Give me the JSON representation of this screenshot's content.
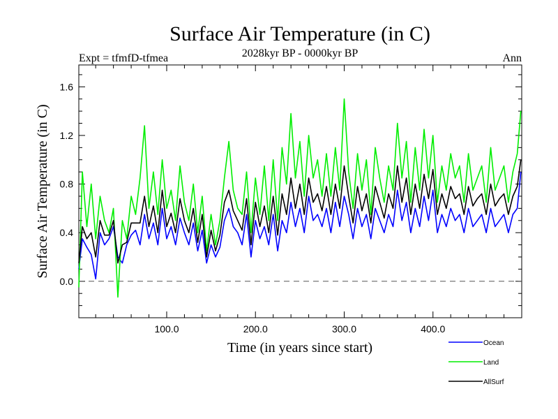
{
  "chart_data": {
    "type": "line",
    "title": "Surface Air Temperature (in C)",
    "subtitle": "2028kyr BP - 0000kyr BP",
    "experiment_label": "Expt = tfmfD-tfmea",
    "period_label": "Ann",
    "xlabel": "Time (in years since start)",
    "ylabel": "Surface Air Temperature (in C)",
    "xlim": [
      1,
      500
    ],
    "ylim": [
      -0.3,
      1.78
    ],
    "x_ticks": [
      100,
      200,
      300,
      400
    ],
    "x_tick_labels": [
      "100.0",
      "200.0",
      "300.0",
      "400.0"
    ],
    "y_ticks": [
      0.0,
      0.4,
      0.8,
      1.2,
      1.6
    ],
    "y_tick_labels": [
      "0.0",
      "0.4",
      "0.8",
      "1.2",
      "1.6"
    ],
    "zero_line": true,
    "legend_position": "bottom-right",
    "series": [
      {
        "name": "Ocean",
        "color": "#0000ff",
        "x": [
          1,
          5,
          10,
          15,
          20,
          25,
          30,
          35,
          40,
          45,
          50,
          55,
          60,
          65,
          70,
          75,
          80,
          85,
          90,
          95,
          100,
          105,
          110,
          115,
          120,
          125,
          130,
          135,
          140,
          145,
          150,
          155,
          160,
          165,
          170,
          175,
          180,
          185,
          190,
          195,
          200,
          205,
          210,
          215,
          220,
          225,
          230,
          235,
          240,
          245,
          250,
          255,
          260,
          265,
          270,
          275,
          280,
          285,
          290,
          295,
          300,
          305,
          310,
          315,
          320,
          325,
          330,
          335,
          340,
          345,
          350,
          355,
          360,
          365,
          370,
          375,
          380,
          385,
          390,
          395,
          400,
          405,
          410,
          415,
          420,
          425,
          430,
          435,
          440,
          445,
          450,
          455,
          460,
          465,
          470,
          475,
          480,
          485,
          490,
          495,
          499
        ],
        "values": [
          0.1,
          0.35,
          0.28,
          0.22,
          0.02,
          0.4,
          0.3,
          0.35,
          0.45,
          0.2,
          0.15,
          0.3,
          0.38,
          0.42,
          0.3,
          0.55,
          0.35,
          0.48,
          0.3,
          0.6,
          0.35,
          0.45,
          0.3,
          0.52,
          0.4,
          0.3,
          0.48,
          0.25,
          0.42,
          0.15,
          0.3,
          0.2,
          0.28,
          0.5,
          0.6,
          0.45,
          0.4,
          0.3,
          0.55,
          0.2,
          0.5,
          0.35,
          0.45,
          0.3,
          0.55,
          0.25,
          0.5,
          0.4,
          0.65,
          0.45,
          0.6,
          0.4,
          0.7,
          0.5,
          0.55,
          0.45,
          0.6,
          0.4,
          0.65,
          0.45,
          0.7,
          0.55,
          0.35,
          0.6,
          0.45,
          0.55,
          0.35,
          0.6,
          0.5,
          0.4,
          0.55,
          0.45,
          0.75,
          0.5,
          0.65,
          0.4,
          0.6,
          0.45,
          0.7,
          0.5,
          0.75,
          0.4,
          0.55,
          0.45,
          0.6,
          0.5,
          0.55,
          0.4,
          0.6,
          0.45,
          0.5,
          0.55,
          0.4,
          0.6,
          0.45,
          0.5,
          0.55,
          0.4,
          0.55,
          0.6,
          0.9
        ]
      },
      {
        "name": "Land",
        "color": "#00ee00",
        "x": [
          1,
          5,
          10,
          15,
          20,
          25,
          30,
          35,
          40,
          45,
          50,
          55,
          60,
          65,
          70,
          75,
          80,
          85,
          90,
          95,
          100,
          105,
          110,
          115,
          120,
          125,
          130,
          135,
          140,
          145,
          150,
          155,
          160,
          165,
          170,
          175,
          180,
          185,
          190,
          195,
          200,
          205,
          210,
          215,
          220,
          225,
          230,
          235,
          240,
          245,
          250,
          255,
          260,
          265,
          270,
          275,
          280,
          285,
          290,
          295,
          300,
          305,
          310,
          315,
          320,
          325,
          330,
          335,
          340,
          345,
          350,
          355,
          360,
          365,
          370,
          375,
          380,
          385,
          390,
          395,
          400,
          405,
          410,
          415,
          420,
          425,
          430,
          435,
          440,
          445,
          450,
          455,
          460,
          465,
          470,
          475,
          480,
          485,
          490,
          495,
          499
        ],
        "values": [
          -0.05,
          0.9,
          0.45,
          0.8,
          0.35,
          0.7,
          0.5,
          0.4,
          0.6,
          -0.13,
          0.5,
          0.35,
          0.7,
          0.55,
          0.85,
          1.28,
          0.6,
          0.9,
          0.55,
          1.0,
          0.6,
          0.75,
          0.5,
          0.95,
          0.65,
          0.5,
          0.8,
          0.4,
          0.7,
          0.25,
          0.55,
          0.3,
          0.5,
          0.85,
          1.15,
          0.75,
          0.6,
          0.55,
          0.9,
          0.4,
          0.85,
          0.55,
          0.95,
          0.5,
          1.0,
          0.5,
          1.1,
          0.8,
          1.38,
          0.85,
          1.15,
          0.7,
          1.2,
          0.85,
          1.0,
          0.7,
          1.05,
          0.7,
          1.1,
          0.75,
          1.5,
          0.9,
          0.6,
          1.05,
          0.75,
          1.0,
          0.55,
          1.1,
          0.85,
          0.65,
          0.95,
          0.75,
          1.3,
          0.85,
          1.15,
          0.65,
          1.1,
          0.75,
          1.25,
          0.85,
          1.2,
          0.65,
          0.95,
          0.75,
          1.05,
          0.85,
          0.95,
          0.65,
          1.05,
          0.75,
          0.85,
          0.95,
          0.65,
          1.1,
          0.75,
          0.85,
          0.95,
          0.65,
          0.9,
          1.05,
          1.4
        ]
      },
      {
        "name": "AllSurf",
        "color": "#000000",
        "x": [
          1,
          5,
          10,
          15,
          20,
          25,
          30,
          35,
          40,
          45,
          50,
          55,
          60,
          65,
          70,
          75,
          80,
          85,
          90,
          95,
          100,
          105,
          110,
          115,
          120,
          125,
          130,
          135,
          140,
          145,
          150,
          155,
          160,
          165,
          170,
          175,
          180,
          185,
          190,
          195,
          200,
          205,
          210,
          215,
          220,
          225,
          230,
          235,
          240,
          245,
          250,
          255,
          260,
          265,
          270,
          275,
          280,
          285,
          290,
          295,
          300,
          305,
          310,
          315,
          320,
          325,
          330,
          335,
          340,
          345,
          350,
          355,
          360,
          365,
          370,
          375,
          380,
          385,
          390,
          395,
          400,
          405,
          410,
          415,
          420,
          425,
          430,
          435,
          440,
          445,
          450,
          455,
          460,
          465,
          470,
          475,
          480,
          485,
          490,
          495,
          499
        ],
        "values": [
          0.15,
          0.45,
          0.35,
          0.4,
          0.2,
          0.5,
          0.38,
          0.38,
          0.5,
          0.15,
          0.3,
          0.32,
          0.48,
          0.48,
          0.48,
          0.7,
          0.45,
          0.62,
          0.4,
          0.75,
          0.45,
          0.56,
          0.4,
          0.68,
          0.5,
          0.4,
          0.6,
          0.32,
          0.55,
          0.2,
          0.42,
          0.25,
          0.38,
          0.65,
          0.75,
          0.58,
          0.5,
          0.42,
          0.68,
          0.3,
          0.65,
          0.45,
          0.62,
          0.4,
          0.7,
          0.38,
          0.72,
          0.55,
          0.85,
          0.6,
          0.8,
          0.55,
          0.85,
          0.65,
          0.72,
          0.58,
          0.78,
          0.55,
          0.8,
          0.6,
          0.95,
          0.7,
          0.48,
          0.78,
          0.58,
          0.72,
          0.48,
          0.78,
          0.65,
          0.52,
          0.72,
          0.6,
          0.95,
          0.65,
          0.85,
          0.55,
          0.8,
          0.6,
          0.88,
          0.68,
          0.92,
          0.55,
          0.72,
          0.6,
          0.78,
          0.68,
          0.72,
          0.55,
          0.78,
          0.62,
          0.68,
          0.72,
          0.55,
          0.8,
          0.62,
          0.68,
          0.72,
          0.55,
          0.7,
          0.78,
          1.0
        ]
      }
    ]
  }
}
